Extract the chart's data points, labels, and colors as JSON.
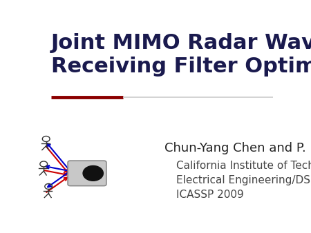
{
  "title_line1": "Joint MIMO Radar Waveform and",
  "title_line2": "Receiving Filter Optimization",
  "title_color": "#1a1a4e",
  "title_fontsize": 22,
  "divider_color_thick": "#8b0000",
  "divider_color_thin": "#cccccc",
  "author_line": "Chun-Yang Chen and P. P. Vaidyanathan",
  "inst_line1": "California Institute of Technology",
  "inst_line2": "Electrical Engineering/DSP Lab",
  "inst_line3": "ICASSP 2009",
  "author_fontsize": 13,
  "inst_fontsize": 11,
  "background_color": "#ffffff",
  "arrow_red_color": "#cc0000",
  "arrow_blue_color": "#0000cc"
}
